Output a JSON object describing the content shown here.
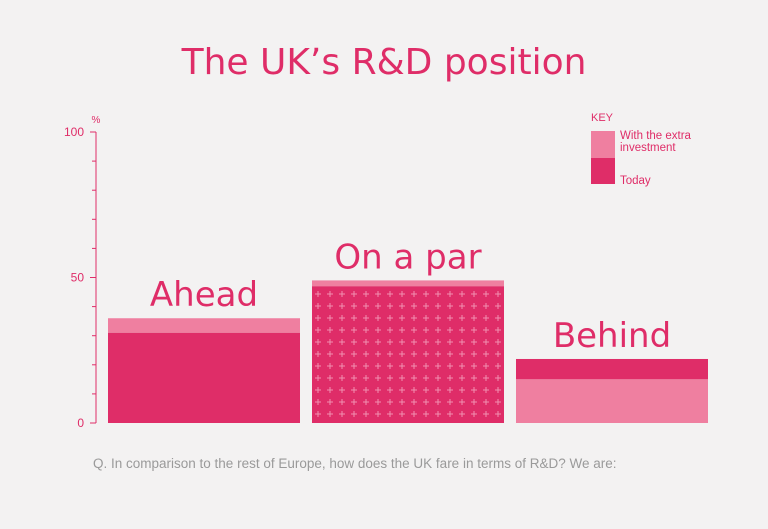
{
  "title": "The UK’s R&D position",
  "question": "Q. In comparison to the rest of Europe, how does the UK fare in terms of R&D? We are:",
  "key": {
    "title": "KEY",
    "items": [
      {
        "label": "With the extra investment",
        "color": "#ef7fa0"
      },
      {
        "label": "Today",
        "color": "#df2d68"
      }
    ]
  },
  "colors": {
    "today": "#df2d68",
    "extra": "#ef7fa0",
    "axis": "#df2d68"
  },
  "chart_data": {
    "type": "bar",
    "title": "The UK’s R&D position",
    "ylabel": "%",
    "ylim": [
      0,
      100
    ],
    "yticks": [
      0,
      50,
      100
    ],
    "categories": [
      "Ahead",
      "On a par",
      "Behind"
    ],
    "series": [
      {
        "name": "Today",
        "values": [
          31,
          47,
          22
        ]
      },
      {
        "name": "With the extra investment",
        "values": [
          36,
          49,
          15
        ]
      }
    ]
  }
}
